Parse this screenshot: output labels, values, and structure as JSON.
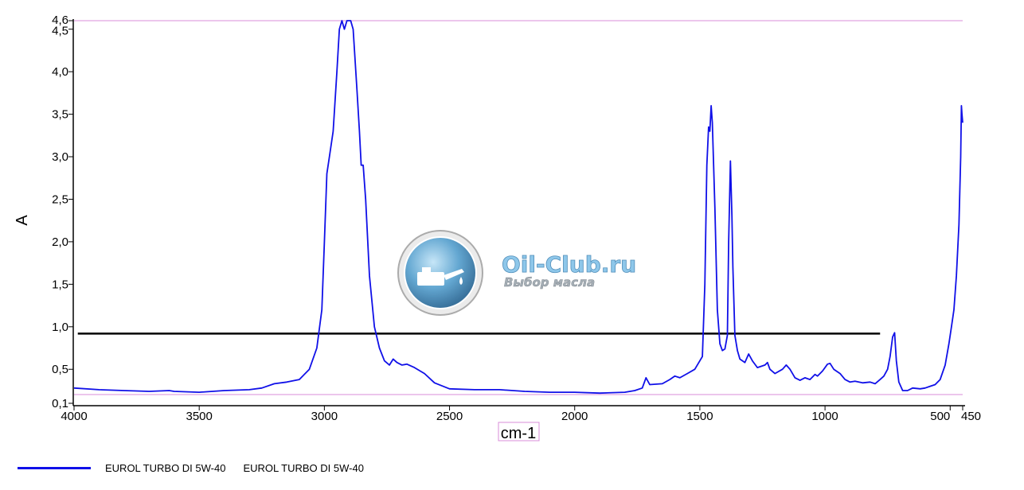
{
  "chart_data": {
    "type": "line",
    "title": "",
    "xlabel": "cm-1",
    "ylabel": "A",
    "xlim": [
      4000,
      450
    ],
    "ylim": [
      0.1,
      4.6
    ],
    "x_reversed": true,
    "grid": false,
    "legend_placement": "bottom-left",
    "x_ticks": [
      4000,
      3500,
      3000,
      2500,
      2000,
      1500,
      1000,
      500,
      450
    ],
    "x_tick_labels": [
      "4000",
      "3500",
      "3000",
      "2500",
      "2000",
      "1500",
      "1000",
      "500",
      "450"
    ],
    "y_ticks": [
      0.1,
      0.5,
      1.0,
      1.5,
      2.0,
      2.5,
      3.0,
      3.5,
      4.0,
      4.5,
      4.6
    ],
    "y_tick_labels": [
      "0,1",
      "0,5",
      "1,0",
      "1,5",
      "2,0",
      "2,5",
      "3,0",
      "3,5",
      "4,0",
      "4,5",
      "4,6"
    ],
    "baseline": {
      "y": 0.92,
      "x_start": 3985,
      "x_end": 780,
      "color": "#000000"
    },
    "series": [
      {
        "name": "EUROL TURBO DI 5W-40",
        "color": "#1010e8",
        "points": [
          [
            4000,
            0.28
          ],
          [
            3900,
            0.26
          ],
          [
            3800,
            0.25
          ],
          [
            3700,
            0.24
          ],
          [
            3620,
            0.25
          ],
          [
            3600,
            0.24
          ],
          [
            3500,
            0.23
          ],
          [
            3400,
            0.25
          ],
          [
            3300,
            0.26
          ],
          [
            3250,
            0.28
          ],
          [
            3200,
            0.33
          ],
          [
            3150,
            0.35
          ],
          [
            3100,
            0.38
          ],
          [
            3060,
            0.5
          ],
          [
            3030,
            0.75
          ],
          [
            3010,
            1.2
          ],
          [
            3000,
            2.0
          ],
          [
            2990,
            2.8
          ],
          [
            2980,
            3.0
          ],
          [
            2965,
            3.3
          ],
          [
            2950,
            4.0
          ],
          [
            2940,
            4.5
          ],
          [
            2930,
            4.6
          ],
          [
            2920,
            4.5
          ],
          [
            2910,
            4.6
          ],
          [
            2895,
            4.6
          ],
          [
            2885,
            4.5
          ],
          [
            2870,
            3.8
          ],
          [
            2860,
            3.3
          ],
          [
            2853,
            2.9
          ],
          [
            2845,
            2.9
          ],
          [
            2835,
            2.5
          ],
          [
            2820,
            1.6
          ],
          [
            2800,
            1.0
          ],
          [
            2780,
            0.75
          ],
          [
            2760,
            0.6
          ],
          [
            2740,
            0.55
          ],
          [
            2725,
            0.62
          ],
          [
            2710,
            0.58
          ],
          [
            2690,
            0.55
          ],
          [
            2670,
            0.56
          ],
          [
            2640,
            0.52
          ],
          [
            2600,
            0.45
          ],
          [
            2560,
            0.34
          ],
          [
            2500,
            0.27
          ],
          [
            2400,
            0.26
          ],
          [
            2300,
            0.26
          ],
          [
            2200,
            0.24
          ],
          [
            2100,
            0.23
          ],
          [
            2000,
            0.23
          ],
          [
            1900,
            0.22
          ],
          [
            1800,
            0.23
          ],
          [
            1760,
            0.25
          ],
          [
            1730,
            0.28
          ],
          [
            1715,
            0.4
          ],
          [
            1700,
            0.32
          ],
          [
            1650,
            0.33
          ],
          [
            1620,
            0.38
          ],
          [
            1600,
            0.42
          ],
          [
            1580,
            0.4
          ],
          [
            1550,
            0.45
          ],
          [
            1520,
            0.5
          ],
          [
            1500,
            0.6
          ],
          [
            1490,
            0.65
          ],
          [
            1480,
            1.5
          ],
          [
            1472,
            2.9
          ],
          [
            1465,
            3.35
          ],
          [
            1460,
            3.3
          ],
          [
            1455,
            3.6
          ],
          [
            1450,
            3.4
          ],
          [
            1440,
            2.4
          ],
          [
            1430,
            1.2
          ],
          [
            1420,
            0.8
          ],
          [
            1410,
            0.72
          ],
          [
            1400,
            0.74
          ],
          [
            1390,
            0.9
          ],
          [
            1385,
            2.0
          ],
          [
            1378,
            2.95
          ],
          [
            1372,
            2.3
          ],
          [
            1368,
            1.7
          ],
          [
            1360,
            0.9
          ],
          [
            1350,
            0.72
          ],
          [
            1340,
            0.62
          ],
          [
            1320,
            0.58
          ],
          [
            1305,
            0.68
          ],
          [
            1290,
            0.6
          ],
          [
            1270,
            0.52
          ],
          [
            1240,
            0.55
          ],
          [
            1230,
            0.58
          ],
          [
            1220,
            0.5
          ],
          [
            1200,
            0.45
          ],
          [
            1170,
            0.5
          ],
          [
            1155,
            0.55
          ],
          [
            1140,
            0.5
          ],
          [
            1120,
            0.4
          ],
          [
            1100,
            0.37
          ],
          [
            1080,
            0.4
          ],
          [
            1060,
            0.38
          ],
          [
            1040,
            0.44
          ],
          [
            1030,
            0.42
          ],
          [
            1010,
            0.48
          ],
          [
            990,
            0.56
          ],
          [
            980,
            0.57
          ],
          [
            965,
            0.5
          ],
          [
            940,
            0.45
          ],
          [
            920,
            0.38
          ],
          [
            900,
            0.35
          ],
          [
            880,
            0.36
          ],
          [
            850,
            0.34
          ],
          [
            820,
            0.35
          ],
          [
            800,
            0.33
          ],
          [
            780,
            0.38
          ],
          [
            765,
            0.42
          ],
          [
            750,
            0.5
          ],
          [
            740,
            0.65
          ],
          [
            730,
            0.88
          ],
          [
            722,
            0.93
          ],
          [
            715,
            0.6
          ],
          [
            705,
            0.35
          ],
          [
            690,
            0.25
          ],
          [
            670,
            0.25
          ],
          [
            650,
            0.28
          ],
          [
            620,
            0.27
          ],
          [
            600,
            0.28
          ],
          [
            580,
            0.3
          ],
          [
            560,
            0.32
          ],
          [
            540,
            0.38
          ],
          [
            520,
            0.55
          ],
          [
            505,
            0.8
          ],
          [
            495,
            1.0
          ],
          [
            485,
            1.2
          ],
          [
            475,
            1.6
          ],
          [
            465,
            2.2
          ],
          [
            458,
            3.0
          ],
          [
            455,
            3.6
          ],
          [
            453,
            3.5
          ],
          [
            450,
            3.4
          ]
        ]
      }
    ]
  },
  "legend": {
    "label_1": "EUROL TURBO DI 5W-40",
    "label_2": "EUROL TURBO DI 5W-40"
  },
  "watermark": {
    "title": "Oil-Club.ru",
    "subtitle": "Выбор масла",
    "icon": "oil-can-icon"
  }
}
